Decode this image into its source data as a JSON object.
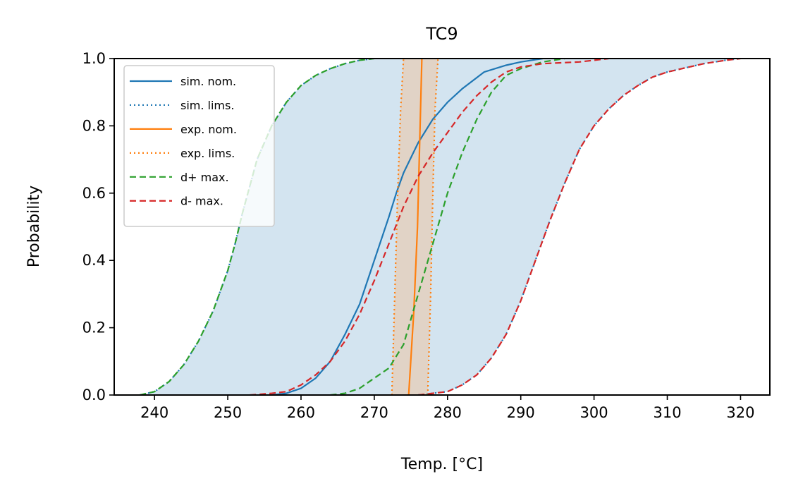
{
  "chart_data": {
    "type": "line",
    "title": "TC9",
    "xlabel": "Temp. [°C]",
    "ylabel": "Probability",
    "xlim": [
      234.5,
      324.0
    ],
    "ylim": [
      0.0,
      1.0
    ],
    "xticks": [
      "240",
      "250",
      "260",
      "270",
      "280",
      "290",
      "300",
      "310",
      "320"
    ],
    "yticks": [
      "0.0",
      "0.2",
      "0.4",
      "0.6",
      "0.8",
      "1.0"
    ],
    "legend_position": "upper-left",
    "grid": false,
    "series": [
      {
        "name": "sim. nom.",
        "color": "#1f77b4",
        "style": "solid",
        "points": [
          [
            256,
            0.0
          ],
          [
            258,
            0.005
          ],
          [
            260,
            0.02
          ],
          [
            262,
            0.05
          ],
          [
            264,
            0.1
          ],
          [
            266,
            0.18
          ],
          [
            268,
            0.27
          ],
          [
            270,
            0.4
          ],
          [
            272,
            0.53
          ],
          [
            273,
            0.6
          ],
          [
            274,
            0.66
          ],
          [
            276,
            0.75
          ],
          [
            278,
            0.82
          ],
          [
            280,
            0.87
          ],
          [
            282,
            0.91
          ],
          [
            285,
            0.96
          ],
          [
            288,
            0.98
          ],
          [
            290,
            0.99
          ],
          [
            293,
            1.0
          ]
        ]
      },
      {
        "name": "sim. lims.",
        "color": "#1f77b4",
        "style": "dotted",
        "lower": [
          [
            238,
            0.0
          ],
          [
            240,
            0.01
          ],
          [
            242,
            0.04
          ],
          [
            244,
            0.09
          ],
          [
            246,
            0.16
          ],
          [
            248,
            0.25
          ],
          [
            250,
            0.37
          ],
          [
            251,
            0.45
          ],
          [
            252,
            0.54
          ],
          [
            253,
            0.62
          ],
          [
            254,
            0.7
          ],
          [
            256,
            0.8
          ],
          [
            258,
            0.87
          ],
          [
            260,
            0.92
          ],
          [
            262,
            0.95
          ],
          [
            264,
            0.97
          ],
          [
            266,
            0.985
          ],
          [
            268,
            0.995
          ],
          [
            270,
            1.0
          ]
        ],
        "upper": [
          [
            276,
            0.0
          ],
          [
            278,
            0.005
          ],
          [
            280,
            0.01
          ],
          [
            282,
            0.03
          ],
          [
            284,
            0.06
          ],
          [
            286,
            0.11
          ],
          [
            288,
            0.18
          ],
          [
            290,
            0.28
          ],
          [
            292,
            0.4
          ],
          [
            294,
            0.52
          ],
          [
            296,
            0.63
          ],
          [
            298,
            0.73
          ],
          [
            300,
            0.8
          ],
          [
            302,
            0.85
          ],
          [
            304,
            0.89
          ],
          [
            306,
            0.92
          ],
          [
            308,
            0.945
          ],
          [
            310,
            0.96
          ],
          [
            312,
            0.97
          ],
          [
            315,
            0.985
          ],
          [
            318,
            0.995
          ],
          [
            320,
            1.0
          ]
        ]
      },
      {
        "name": "exp. nom.",
        "color": "#ff7f0e",
        "style": "solid",
        "points": [
          [
            274.7,
            0.0
          ],
          [
            275.4,
            0.25
          ],
          [
            275.9,
            0.5
          ],
          [
            276.2,
            0.75
          ],
          [
            276.5,
            1.0
          ]
        ]
      },
      {
        "name": "exp. lims.",
        "color": "#ff7f0e",
        "style": "dotted",
        "lower": [
          [
            272.4,
            0.0
          ],
          [
            272.8,
            0.3
          ],
          [
            273.2,
            0.6
          ],
          [
            273.6,
            0.85
          ],
          [
            274.0,
            1.0
          ]
        ],
        "upper": [
          [
            277.3,
            0.0
          ],
          [
            277.7,
            0.3
          ],
          [
            278.0,
            0.6
          ],
          [
            278.3,
            0.85
          ],
          [
            278.7,
            1.0
          ]
        ]
      },
      {
        "name": "d+ max.",
        "color": "#2ca02c",
        "style": "dashed",
        "curves": [
          [
            [
              238,
              0.0
            ],
            [
              240,
              0.01
            ],
            [
              242,
              0.04
            ],
            [
              244,
              0.09
            ],
            [
              246,
              0.16
            ],
            [
              248,
              0.25
            ],
            [
              250,
              0.37
            ],
            [
              251,
              0.45
            ],
            [
              252,
              0.54
            ],
            [
              253,
              0.62
            ],
            [
              254,
              0.7
            ],
            [
              256,
              0.8
            ],
            [
              258,
              0.87
            ],
            [
              260,
              0.92
            ],
            [
              262,
              0.95
            ],
            [
              264,
              0.97
            ],
            [
              266,
              0.985
            ],
            [
              268,
              0.995
            ],
            [
              270,
              1.0
            ]
          ],
          [
            [
              264,
              0.0
            ],
            [
              266,
              0.005
            ],
            [
              268,
              0.02
            ],
            [
              270,
              0.05
            ],
            [
              272,
              0.08
            ],
            [
              274,
              0.15
            ],
            [
              276,
              0.3
            ],
            [
              278,
              0.45
            ],
            [
              280,
              0.6
            ],
            [
              282,
              0.72
            ],
            [
              284,
              0.82
            ],
            [
              286,
              0.9
            ],
            [
              288,
              0.95
            ],
            [
              290,
              0.97
            ],
            [
              293,
              0.99
            ],
            [
              296,
              1.0
            ]
          ]
        ]
      },
      {
        "name": "d- max.",
        "color": "#d62728",
        "style": "dashed",
        "curves": [
          [
            [
              253,
              0.0
            ],
            [
              256,
              0.005
            ],
            [
              258,
              0.01
            ],
            [
              260,
              0.03
            ],
            [
              262,
              0.06
            ],
            [
              264,
              0.1
            ],
            [
              266,
              0.16
            ],
            [
              268,
              0.24
            ],
            [
              270,
              0.34
            ],
            [
              272,
              0.45
            ],
            [
              274,
              0.56
            ],
            [
              276,
              0.65
            ],
            [
              278,
              0.72
            ],
            [
              280,
              0.78
            ],
            [
              282,
              0.84
            ],
            [
              284,
              0.89
            ],
            [
              286,
              0.93
            ],
            [
              288,
              0.96
            ],
            [
              290,
              0.975
            ],
            [
              293,
              0.985
            ],
            [
              298,
              0.99
            ],
            [
              302,
              1.0
            ]
          ],
          [
            [
              276,
              0.0
            ],
            [
              278,
              0.005
            ],
            [
              280,
              0.01
            ],
            [
              282,
              0.03
            ],
            [
              284,
              0.06
            ],
            [
              286,
              0.11
            ],
            [
              288,
              0.18
            ],
            [
              290,
              0.28
            ],
            [
              292,
              0.4
            ],
            [
              294,
              0.52
            ],
            [
              296,
              0.63
            ],
            [
              298,
              0.73
            ],
            [
              300,
              0.8
            ],
            [
              302,
              0.85
            ],
            [
              304,
              0.89
            ],
            [
              306,
              0.92
            ],
            [
              308,
              0.945
            ],
            [
              310,
              0.96
            ],
            [
              312,
              0.97
            ],
            [
              315,
              0.985
            ],
            [
              318,
              0.995
            ],
            [
              320,
              1.0
            ]
          ]
        ]
      }
    ],
    "bands": [
      {
        "name": "simulation limits band",
        "color": "#aecde3",
        "between": "sim. lims."
      },
      {
        "name": "experiment limits band",
        "color": "#e5cdb8",
        "between": "exp. lims."
      }
    ]
  }
}
